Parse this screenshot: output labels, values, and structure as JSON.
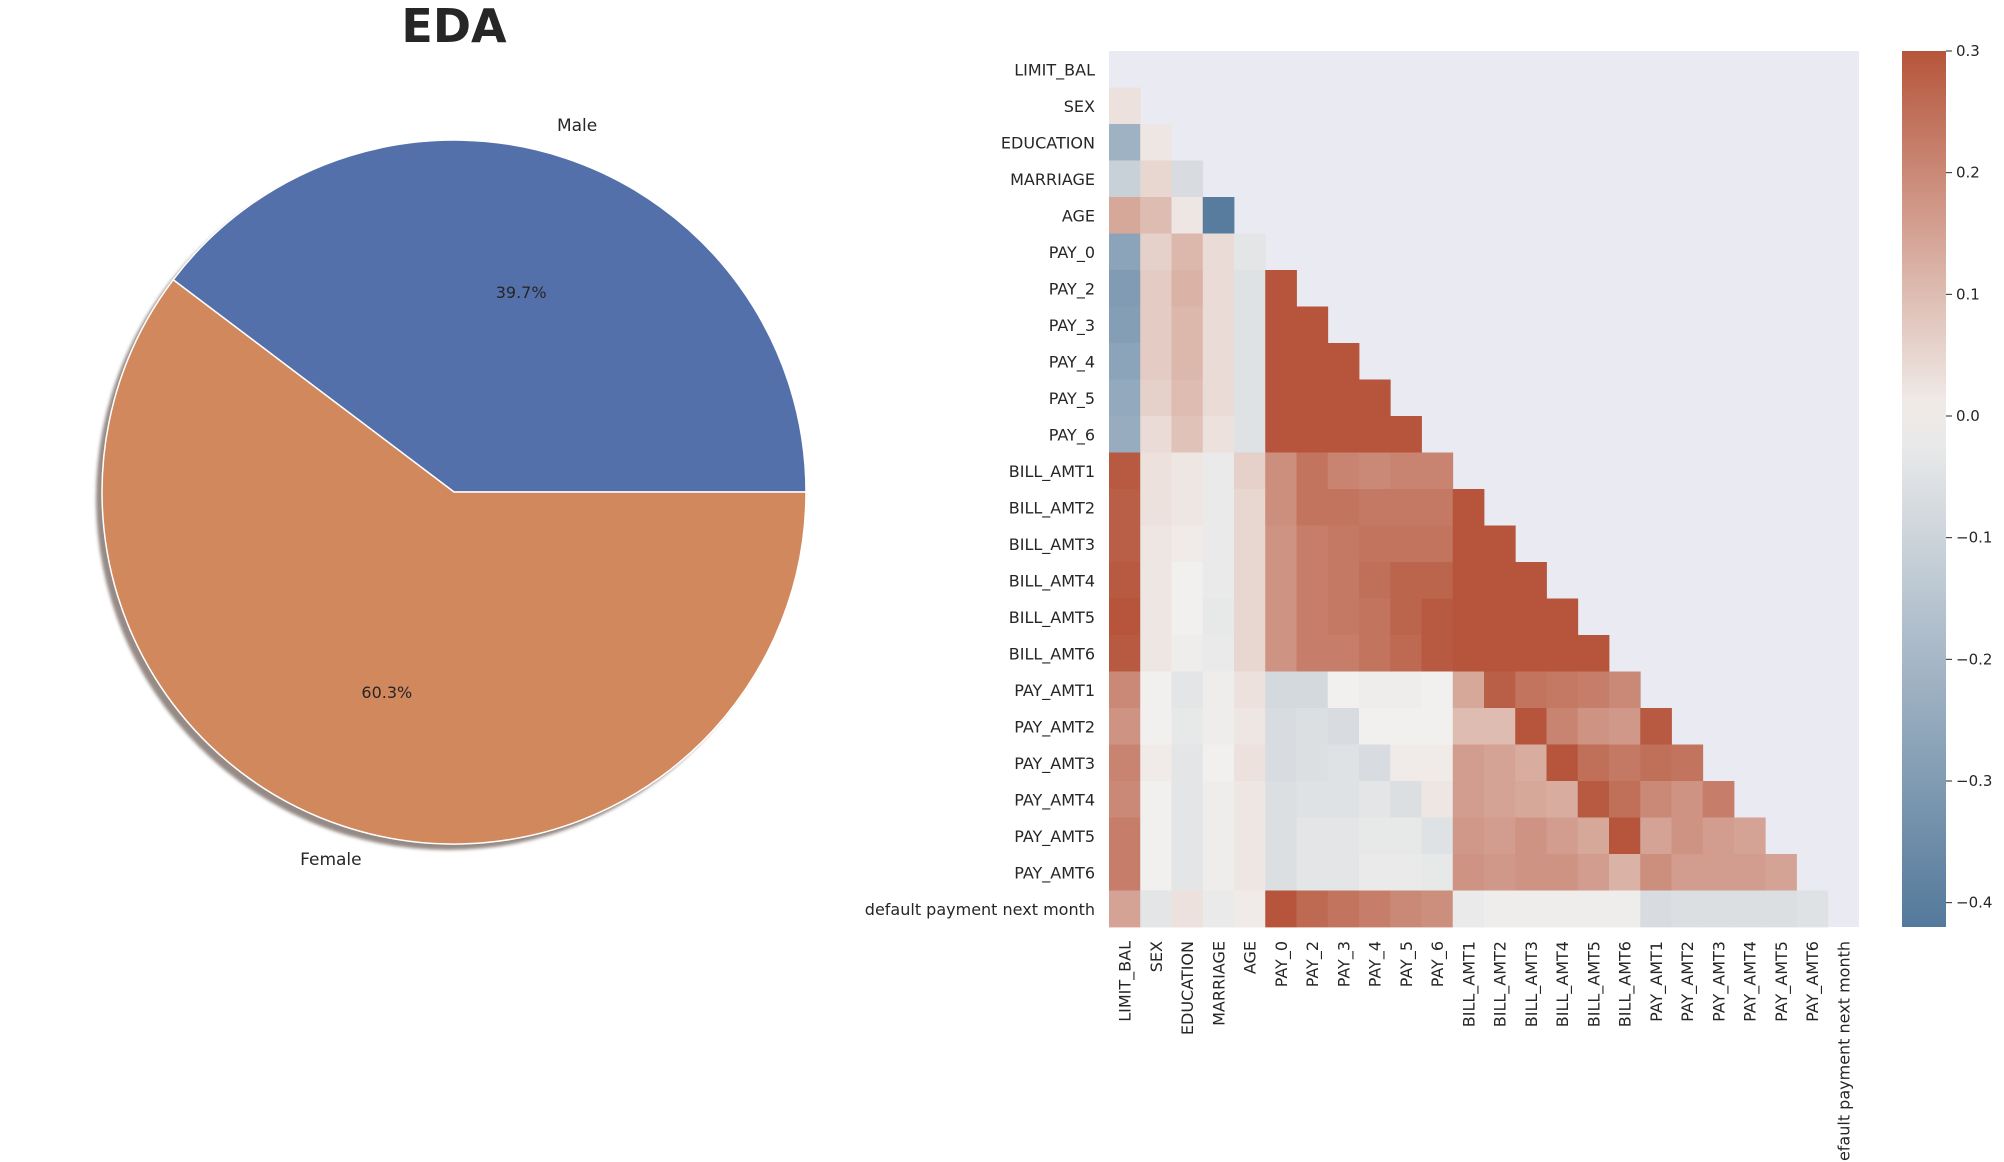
{
  "figure_title": "EDA",
  "chart_data": [
    {
      "type": "pie",
      "title": "",
      "labels": [
        "Male",
        "Female"
      ],
      "values": [
        39.7,
        60.3
      ],
      "autopct_labels": [
        "39.7%",
        "60.3%"
      ],
      "colors": [
        "#5470aa",
        "#d1885c"
      ],
      "start_angle_deg": 0,
      "shadow": true
    },
    {
      "type": "heatmap",
      "title": "",
      "mask": "upper-triangle",
      "colormap": {
        "low": "#53799b",
        "mid": "#f2f0ee",
        "high": "#b6553b"
      },
      "vmin": -0.42,
      "vmax": 0.3,
      "colorbar_ticks": [
        0.3,
        0.2,
        0.1,
        0.0,
        -0.1,
        -0.2,
        -0.3,
        -0.4
      ],
      "colorbar_tick_labels": [
        "0.3",
        "0.2",
        "0.1",
        "0.0",
        "−0.1",
        "−0.2",
        "−0.3",
        "−0.4"
      ],
      "masked_color": "#eaeaf2",
      "variables": [
        "LIMIT_BAL",
        "SEX",
        "EDUCATION",
        "MARRIAGE",
        "AGE",
        "PAY_0",
        "PAY_2",
        "PAY_3",
        "PAY_4",
        "PAY_5",
        "PAY_6",
        "BILL_AMT1",
        "BILL_AMT2",
        "BILL_AMT3",
        "BILL_AMT4",
        "BILL_AMT5",
        "BILL_AMT6",
        "PAY_AMT1",
        "PAY_AMT2",
        "PAY_AMT3",
        "PAY_AMT4",
        "PAY_AMT5",
        "PAY_AMT6",
        "default payment next month"
      ],
      "lower_triangle_rows": [
        [],
        [
          0.03
        ],
        [
          -0.22,
          0.02
        ],
        [
          -0.11,
          0.05,
          -0.07
        ],
        [
          0.14,
          0.1,
          0.02,
          -0.41
        ],
        [
          -0.27,
          0.06,
          0.11,
          0.04,
          -0.04
        ],
        [
          -0.3,
          0.07,
          0.12,
          0.04,
          -0.05,
          0.67
        ],
        [
          -0.29,
          0.07,
          0.11,
          0.04,
          -0.05,
          0.57,
          0.77
        ],
        [
          -0.27,
          0.07,
          0.11,
          0.04,
          -0.05,
          0.54,
          0.66,
          0.78
        ],
        [
          -0.25,
          0.06,
          0.1,
          0.04,
          -0.05,
          0.51,
          0.62,
          0.69,
          0.82
        ],
        [
          -0.24,
          0.04,
          0.09,
          0.03,
          -0.05,
          0.47,
          0.58,
          0.63,
          0.72,
          0.82
        ],
        [
          0.29,
          0.03,
          0.02,
          -0.02,
          0.06,
          0.19,
          0.24,
          0.21,
          0.2,
          0.21,
          0.21
        ],
        [
          0.28,
          0.03,
          0.02,
          -0.02,
          0.05,
          0.19,
          0.24,
          0.24,
          0.23,
          0.23,
          0.23,
          0.95
        ],
        [
          0.28,
          0.02,
          0.01,
          -0.02,
          0.05,
          0.18,
          0.22,
          0.23,
          0.24,
          0.24,
          0.24,
          0.89,
          0.93
        ],
        [
          0.29,
          0.02,
          0.0,
          -0.02,
          0.05,
          0.18,
          0.22,
          0.23,
          0.25,
          0.27,
          0.27,
          0.86,
          0.89,
          0.92
        ],
        [
          0.3,
          0.02,
          -0.0,
          -0.03,
          0.05,
          0.18,
          0.22,
          0.23,
          0.24,
          0.27,
          0.29,
          0.83,
          0.86,
          0.88,
          0.94
        ],
        [
          0.29,
          0.02,
          -0.01,
          -0.02,
          0.05,
          0.18,
          0.22,
          0.22,
          0.24,
          0.26,
          0.29,
          0.8,
          0.83,
          0.85,
          0.9,
          0.95
        ],
        [
          0.2,
          0.0,
          -0.04,
          -0.01,
          0.03,
          -0.08,
          -0.08,
          0.0,
          -0.01,
          -0.01,
          -0.0,
          0.14,
          0.28,
          0.24,
          0.23,
          0.22,
          0.2
        ],
        [
          0.18,
          0.0,
          -0.03,
          -0.01,
          0.02,
          -0.07,
          -0.06,
          -0.07,
          -0.0,
          -0.0,
          -0.0,
          0.1,
          0.1,
          0.32,
          0.21,
          0.18,
          0.17,
          0.29
        ],
        [
          0.21,
          0.01,
          -0.04,
          -0.0,
          0.03,
          -0.07,
          -0.06,
          -0.05,
          -0.07,
          0.01,
          0.01,
          0.16,
          0.15,
          0.13,
          0.3,
          0.25,
          0.23,
          0.25,
          0.24
        ],
        [
          0.2,
          0.0,
          -0.04,
          -0.01,
          0.02,
          -0.06,
          -0.05,
          -0.05,
          -0.04,
          -0.06,
          0.02,
          0.16,
          0.15,
          0.14,
          0.13,
          0.29,
          0.25,
          0.2,
          0.18,
          0.22
        ],
        [
          0.22,
          0.0,
          -0.04,
          -0.01,
          0.02,
          -0.06,
          -0.04,
          -0.04,
          -0.03,
          -0.03,
          -0.05,
          0.17,
          0.16,
          0.18,
          0.16,
          0.14,
          0.31,
          0.15,
          0.18,
          0.16,
          0.15
        ],
        [
          0.22,
          0.0,
          -0.04,
          -0.01,
          0.02,
          -0.06,
          -0.04,
          -0.04,
          -0.02,
          -0.02,
          -0.03,
          0.18,
          0.17,
          0.18,
          0.18,
          0.16,
          0.12,
          0.19,
          0.16,
          0.16,
          0.16,
          0.15
        ],
        [
          0.15,
          -0.04,
          0.03,
          -0.02,
          0.01,
          0.32,
          0.26,
          0.24,
          0.22,
          0.2,
          0.19,
          -0.02,
          -0.01,
          -0.01,
          -0.01,
          -0.01,
          -0.01,
          -0.07,
          -0.06,
          -0.06,
          -0.06,
          -0.06,
          -0.05
        ]
      ]
    }
  ]
}
